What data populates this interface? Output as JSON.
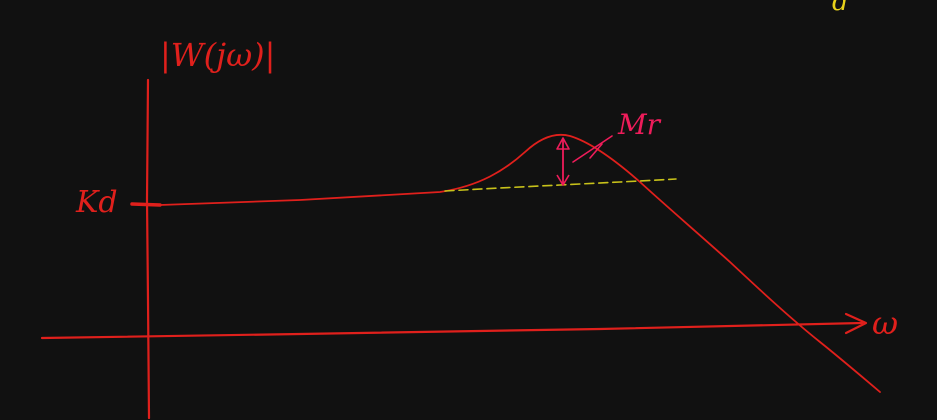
{
  "diagram": {
    "title": "",
    "y_axis_label": "|W(jω)|",
    "x_axis_label": "ω",
    "dc_gain_label": "Kd",
    "peak_label": "Mr",
    "corner_label": "d"
  },
  "colors": {
    "background": "#111111",
    "axes": "#e0201c",
    "curve": "#e0201c",
    "peak_marker": "#ee1c5a",
    "reference_dashes": "#c8c21a",
    "corner_text": "#e8d21a"
  }
}
